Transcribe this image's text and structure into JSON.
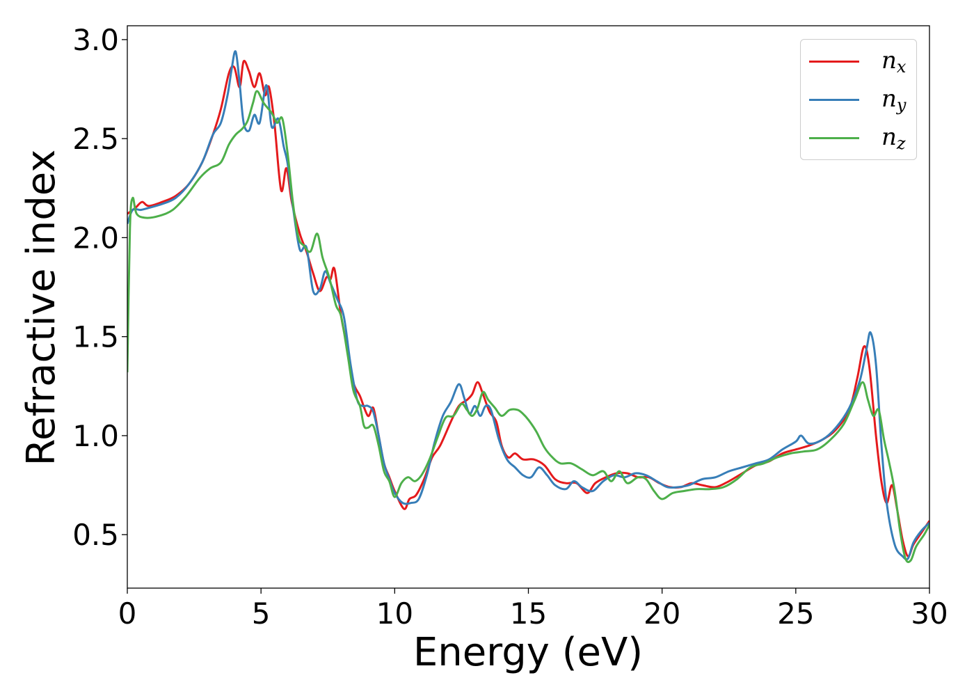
{
  "chart_data": {
    "type": "line",
    "xlabel": "Energy (eV)",
    "ylabel": "Refractive index",
    "xlim": [
      0,
      30
    ],
    "ylim": [
      0.23,
      3.07
    ],
    "xticks": [
      0,
      5,
      10,
      15,
      20,
      25,
      30
    ],
    "xtick_labels": [
      "0",
      "5",
      "10",
      "15",
      "20",
      "25",
      "30"
    ],
    "yticks": [
      0.5,
      1.0,
      1.5,
      2.0,
      2.5,
      3.0
    ],
    "ytick_labels": [
      "0.5",
      "1.0",
      "1.5",
      "2.0",
      "2.5",
      "3.0"
    ],
    "grid": false,
    "legend_position": "top-right",
    "series": [
      {
        "name": "n",
        "subscript": "x",
        "color": "#e41a1c",
        "points": [
          [
            0,
            2.12
          ],
          [
            0.3,
            2.15
          ],
          [
            0.55,
            2.18
          ],
          [
            0.8,
            2.16
          ],
          [
            1.3,
            2.18
          ],
          [
            1.8,
            2.21
          ],
          [
            2.3,
            2.27
          ],
          [
            2.8,
            2.38
          ],
          [
            3.2,
            2.52
          ],
          [
            3.5,
            2.65
          ],
          [
            3.8,
            2.83
          ],
          [
            4.0,
            2.86
          ],
          [
            4.2,
            2.76
          ],
          [
            4.35,
            2.89
          ],
          [
            4.55,
            2.84
          ],
          [
            4.75,
            2.76
          ],
          [
            4.95,
            2.83
          ],
          [
            5.15,
            2.72
          ],
          [
            5.3,
            2.76
          ],
          [
            5.5,
            2.58
          ],
          [
            5.75,
            2.24
          ],
          [
            5.95,
            2.35
          ],
          [
            6.15,
            2.18
          ],
          [
            6.45,
            2.02
          ],
          [
            6.7,
            1.93
          ],
          [
            6.95,
            1.82
          ],
          [
            7.2,
            1.73
          ],
          [
            7.45,
            1.8
          ],
          [
            7.6,
            1.79
          ],
          [
            7.75,
            1.84
          ],
          [
            8.0,
            1.6
          ],
          [
            8.25,
            1.43
          ],
          [
            8.45,
            1.27
          ],
          [
            8.7,
            1.2
          ],
          [
            9.0,
            1.1
          ],
          [
            9.2,
            1.14
          ],
          [
            9.4,
            1.0
          ],
          [
            9.6,
            0.86
          ],
          [
            9.8,
            0.79
          ],
          [
            10.0,
            0.72
          ],
          [
            10.35,
            0.63
          ],
          [
            10.55,
            0.68
          ],
          [
            10.8,
            0.7
          ],
          [
            11.1,
            0.78
          ],
          [
            11.4,
            0.89
          ],
          [
            11.7,
            0.95
          ],
          [
            12.1,
            1.07
          ],
          [
            12.4,
            1.15
          ],
          [
            12.7,
            1.18
          ],
          [
            12.9,
            1.21
          ],
          [
            13.1,
            1.27
          ],
          [
            13.3,
            1.21
          ],
          [
            13.55,
            1.12
          ],
          [
            13.8,
            1.07
          ],
          [
            14.0,
            0.95
          ],
          [
            14.25,
            0.89
          ],
          [
            14.5,
            0.91
          ],
          [
            14.8,
            0.88
          ],
          [
            15.2,
            0.88
          ],
          [
            15.6,
            0.85
          ],
          [
            16.0,
            0.78
          ],
          [
            16.4,
            0.76
          ],
          [
            16.8,
            0.76
          ],
          [
            17.2,
            0.71
          ],
          [
            17.5,
            0.76
          ],
          [
            17.9,
            0.79
          ],
          [
            18.3,
            0.81
          ],
          [
            18.7,
            0.81
          ],
          [
            19.1,
            0.79
          ],
          [
            19.5,
            0.79
          ],
          [
            19.9,
            0.76
          ],
          [
            20.3,
            0.74
          ],
          [
            20.7,
            0.74
          ],
          [
            21.1,
            0.76
          ],
          [
            21.5,
            0.75
          ],
          [
            22.0,
            0.74
          ],
          [
            22.5,
            0.77
          ],
          [
            23.0,
            0.81
          ],
          [
            23.5,
            0.85
          ],
          [
            24.0,
            0.87
          ],
          [
            24.5,
            0.91
          ],
          [
            25.0,
            0.93
          ],
          [
            25.5,
            0.95
          ],
          [
            26.0,
            0.98
          ],
          [
            26.5,
            1.03
          ],
          [
            27.0,
            1.13
          ],
          [
            27.3,
            1.29
          ],
          [
            27.55,
            1.45
          ],
          [
            27.75,
            1.35
          ],
          [
            28.0,
            1.0
          ],
          [
            28.2,
            0.77
          ],
          [
            28.4,
            0.66
          ],
          [
            28.6,
            0.75
          ],
          [
            28.8,
            0.62
          ],
          [
            29.0,
            0.47
          ],
          [
            29.2,
            0.39
          ],
          [
            29.4,
            0.45
          ],
          [
            29.7,
            0.51
          ],
          [
            30.0,
            0.57
          ]
        ]
      },
      {
        "name": "n",
        "subscript": "y",
        "color": "#377eb8",
        "points": [
          [
            0,
            2.07
          ],
          [
            0.2,
            2.14
          ],
          [
            0.5,
            2.14
          ],
          [
            0.8,
            2.15
          ],
          [
            1.3,
            2.17
          ],
          [
            1.8,
            2.2
          ],
          [
            2.3,
            2.27
          ],
          [
            2.8,
            2.38
          ],
          [
            3.2,
            2.52
          ],
          [
            3.5,
            2.58
          ],
          [
            3.75,
            2.72
          ],
          [
            3.9,
            2.85
          ],
          [
            4.05,
            2.94
          ],
          [
            4.2,
            2.78
          ],
          [
            4.35,
            2.58
          ],
          [
            4.55,
            2.54
          ],
          [
            4.75,
            2.62
          ],
          [
            4.95,
            2.58
          ],
          [
            5.2,
            2.77
          ],
          [
            5.4,
            2.56
          ],
          [
            5.65,
            2.6
          ],
          [
            5.85,
            2.46
          ],
          [
            6.0,
            2.37
          ],
          [
            6.2,
            2.15
          ],
          [
            6.45,
            1.94
          ],
          [
            6.7,
            1.95
          ],
          [
            6.95,
            1.73
          ],
          [
            7.2,
            1.74
          ],
          [
            7.4,
            1.83
          ],
          [
            7.6,
            1.77
          ],
          [
            7.85,
            1.69
          ],
          [
            8.1,
            1.6
          ],
          [
            8.35,
            1.36
          ],
          [
            8.6,
            1.18
          ],
          [
            8.8,
            1.15
          ],
          [
            9.0,
            1.15
          ],
          [
            9.2,
            1.12
          ],
          [
            9.4,
            1.0
          ],
          [
            9.6,
            0.86
          ],
          [
            9.8,
            0.78
          ],
          [
            10.0,
            0.71
          ],
          [
            10.3,
            0.66
          ],
          [
            10.6,
            0.66
          ],
          [
            10.9,
            0.68
          ],
          [
            11.2,
            0.8
          ],
          [
            11.5,
            0.97
          ],
          [
            11.8,
            1.1
          ],
          [
            12.1,
            1.17
          ],
          [
            12.4,
            1.26
          ],
          [
            12.6,
            1.19
          ],
          [
            12.8,
            1.11
          ],
          [
            13.0,
            1.15
          ],
          [
            13.2,
            1.1
          ],
          [
            13.4,
            1.15
          ],
          [
            13.6,
            1.13
          ],
          [
            13.9,
            0.98
          ],
          [
            14.2,
            0.88
          ],
          [
            14.5,
            0.84
          ],
          [
            14.8,
            0.8
          ],
          [
            15.1,
            0.79
          ],
          [
            15.4,
            0.84
          ],
          [
            15.7,
            0.8
          ],
          [
            16.0,
            0.75
          ],
          [
            16.4,
            0.73
          ],
          [
            16.7,
            0.77
          ],
          [
            17.0,
            0.74
          ],
          [
            17.4,
            0.72
          ],
          [
            17.8,
            0.77
          ],
          [
            18.2,
            0.8
          ],
          [
            18.6,
            0.79
          ],
          [
            19.0,
            0.81
          ],
          [
            19.4,
            0.8
          ],
          [
            19.8,
            0.77
          ],
          [
            20.2,
            0.74
          ],
          [
            20.6,
            0.74
          ],
          [
            21.0,
            0.75
          ],
          [
            21.5,
            0.78
          ],
          [
            22.0,
            0.79
          ],
          [
            22.5,
            0.82
          ],
          [
            23.0,
            0.84
          ],
          [
            23.5,
            0.86
          ],
          [
            24.0,
            0.88
          ],
          [
            24.5,
            0.93
          ],
          [
            25.0,
            0.97
          ],
          [
            25.2,
            1.0
          ],
          [
            25.5,
            0.96
          ],
          [
            26.0,
            0.98
          ],
          [
            26.5,
            1.04
          ],
          [
            27.0,
            1.14
          ],
          [
            27.4,
            1.28
          ],
          [
            27.65,
            1.44
          ],
          [
            27.8,
            1.52
          ],
          [
            28.0,
            1.36
          ],
          [
            28.2,
            0.96
          ],
          [
            28.4,
            0.66
          ],
          [
            28.7,
            0.45
          ],
          [
            29.0,
            0.39
          ],
          [
            29.2,
            0.38
          ],
          [
            29.4,
            0.46
          ],
          [
            29.7,
            0.52
          ],
          [
            30.0,
            0.56
          ]
        ]
      },
      {
        "name": "n",
        "subscript": "z",
        "color": "#4daf4a",
        "points": [
          [
            0,
            1.32
          ],
          [
            0.1,
            2.05
          ],
          [
            0.2,
            2.2
          ],
          [
            0.35,
            2.12
          ],
          [
            0.7,
            2.1
          ],
          [
            1.2,
            2.11
          ],
          [
            1.7,
            2.14
          ],
          [
            2.2,
            2.21
          ],
          [
            2.7,
            2.3
          ],
          [
            3.1,
            2.35
          ],
          [
            3.5,
            2.38
          ],
          [
            3.8,
            2.47
          ],
          [
            4.05,
            2.52
          ],
          [
            4.3,
            2.55
          ],
          [
            4.5,
            2.59
          ],
          [
            4.7,
            2.68
          ],
          [
            4.85,
            2.74
          ],
          [
            5.1,
            2.68
          ],
          [
            5.4,
            2.63
          ],
          [
            5.6,
            2.58
          ],
          [
            5.8,
            2.6
          ],
          [
            6.0,
            2.42
          ],
          [
            6.2,
            2.17
          ],
          [
            6.4,
            2.0
          ],
          [
            6.6,
            1.96
          ],
          [
            6.85,
            1.93
          ],
          [
            7.1,
            2.02
          ],
          [
            7.3,
            1.9
          ],
          [
            7.55,
            1.8
          ],
          [
            7.8,
            1.66
          ],
          [
            8.0,
            1.6
          ],
          [
            8.25,
            1.4
          ],
          [
            8.45,
            1.23
          ],
          [
            8.7,
            1.15
          ],
          [
            8.85,
            1.05
          ],
          [
            9.0,
            1.04
          ],
          [
            9.2,
            1.05
          ],
          [
            9.4,
            0.95
          ],
          [
            9.6,
            0.82
          ],
          [
            9.8,
            0.77
          ],
          [
            10.0,
            0.69
          ],
          [
            10.25,
            0.76
          ],
          [
            10.5,
            0.79
          ],
          [
            10.75,
            0.77
          ],
          [
            11.0,
            0.8
          ],
          [
            11.3,
            0.88
          ],
          [
            11.6,
            0.99
          ],
          [
            11.9,
            1.09
          ],
          [
            12.2,
            1.1
          ],
          [
            12.5,
            1.16
          ],
          [
            12.7,
            1.13
          ],
          [
            12.9,
            1.1
          ],
          [
            13.1,
            1.14
          ],
          [
            13.3,
            1.22
          ],
          [
            13.5,
            1.18
          ],
          [
            13.75,
            1.14
          ],
          [
            14.0,
            1.1
          ],
          [
            14.3,
            1.13
          ],
          [
            14.6,
            1.13
          ],
          [
            14.8,
            1.11
          ],
          [
            15.0,
            1.08
          ],
          [
            15.3,
            1.02
          ],
          [
            15.6,
            0.94
          ],
          [
            15.9,
            0.89
          ],
          [
            16.2,
            0.86
          ],
          [
            16.6,
            0.86
          ],
          [
            17.0,
            0.83
          ],
          [
            17.4,
            0.8
          ],
          [
            17.8,
            0.82
          ],
          [
            18.1,
            0.77
          ],
          [
            18.4,
            0.82
          ],
          [
            18.7,
            0.76
          ],
          [
            19.1,
            0.79
          ],
          [
            19.4,
            0.78
          ],
          [
            19.7,
            0.72
          ],
          [
            20.0,
            0.68
          ],
          [
            20.4,
            0.71
          ],
          [
            20.8,
            0.72
          ],
          [
            21.3,
            0.73
          ],
          [
            21.8,
            0.73
          ],
          [
            22.3,
            0.74
          ],
          [
            22.8,
            0.78
          ],
          [
            23.3,
            0.84
          ],
          [
            23.8,
            0.86
          ],
          [
            24.3,
            0.89
          ],
          [
            24.8,
            0.91
          ],
          [
            25.3,
            0.92
          ],
          [
            25.8,
            0.93
          ],
          [
            26.3,
            0.98
          ],
          [
            26.8,
            1.06
          ],
          [
            27.2,
            1.18
          ],
          [
            27.5,
            1.27
          ],
          [
            27.7,
            1.18
          ],
          [
            27.9,
            1.1
          ],
          [
            28.1,
            1.13
          ],
          [
            28.3,
            0.98
          ],
          [
            28.5,
            0.86
          ],
          [
            28.7,
            0.72
          ],
          [
            28.9,
            0.52
          ],
          [
            29.1,
            0.38
          ],
          [
            29.3,
            0.37
          ],
          [
            29.5,
            0.44
          ],
          [
            29.8,
            0.5
          ],
          [
            30.0,
            0.55
          ]
        ]
      }
    ]
  }
}
